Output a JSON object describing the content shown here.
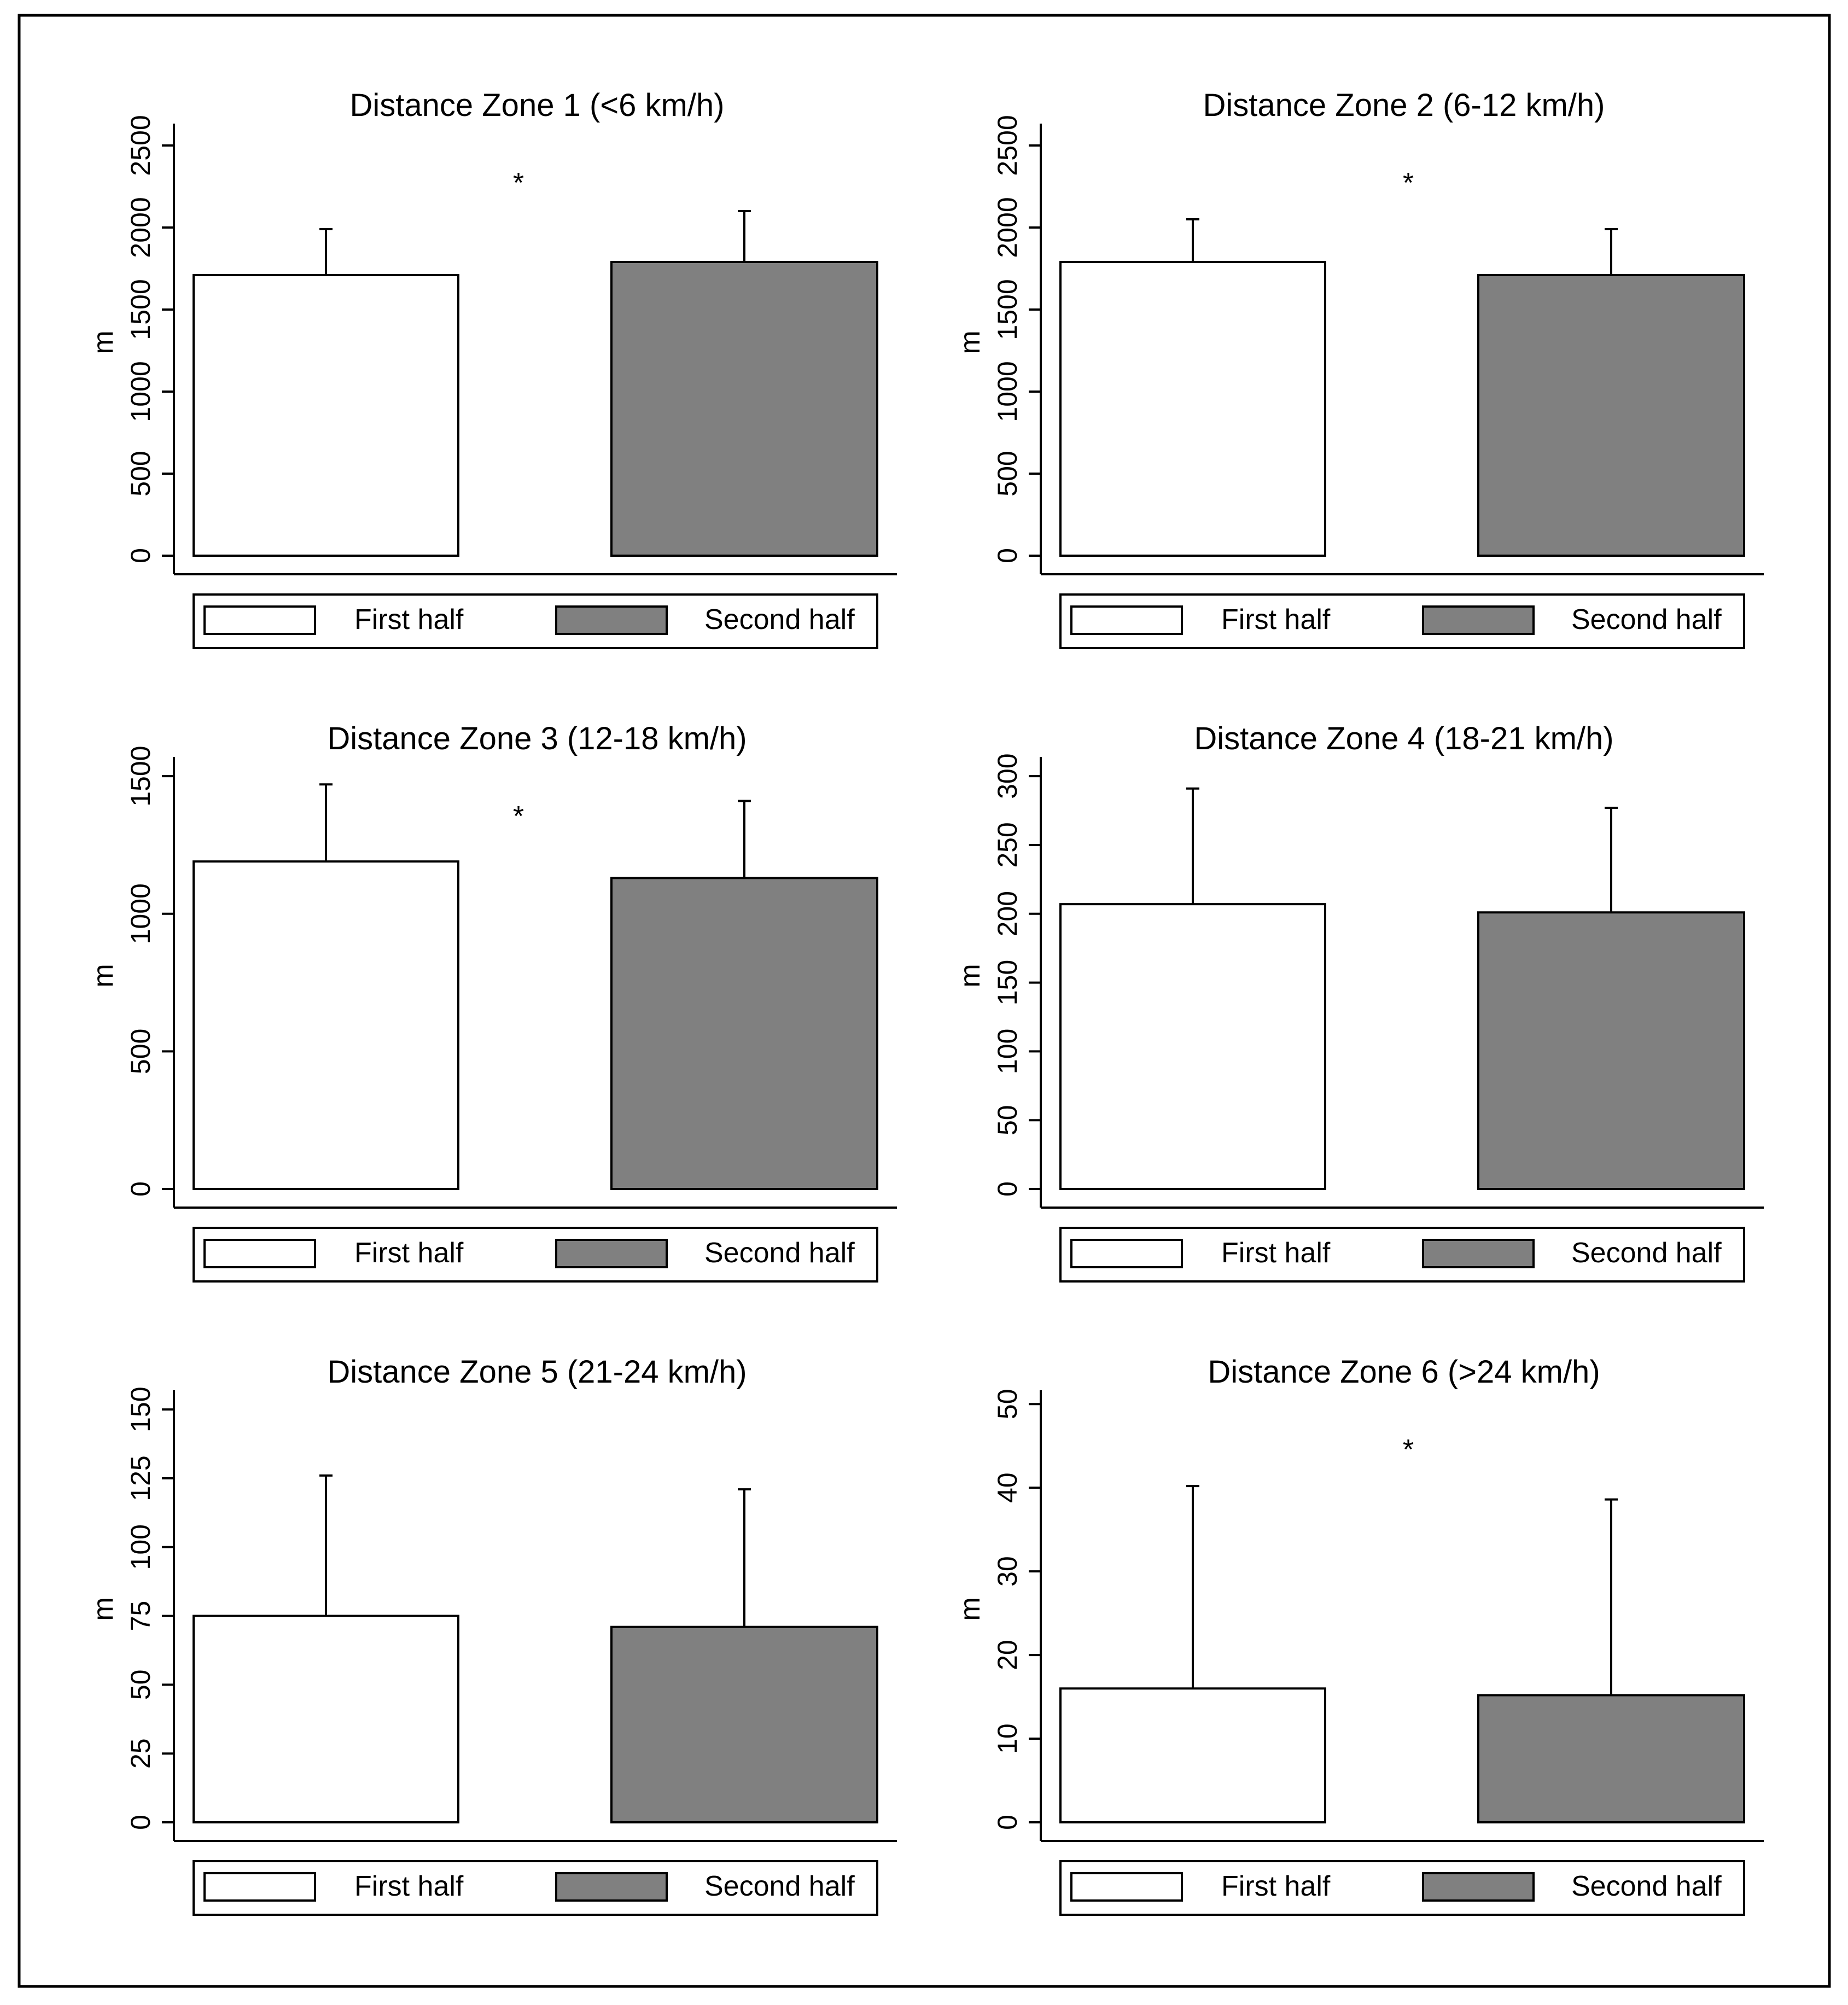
{
  "figure": {
    "legend": {
      "first_label": "First half",
      "second_label": "Second half"
    },
    "colors": {
      "first": "#ffffff",
      "second": "#808080",
      "stroke": "#000000"
    }
  },
  "chart_data": [
    {
      "type": "bar",
      "title": "Distance Zone 1 (<6 km/h)",
      "ylabel": "m",
      "ylim": [
        0,
        2600
      ],
      "yticks": [
        0,
        500,
        1000,
        1500,
        2000,
        2500
      ],
      "series": [
        {
          "name": "First half",
          "value": 1710,
          "error": 280
        },
        {
          "name": "Second half",
          "value": 1790,
          "error": 310
        }
      ],
      "annotation": "*"
    },
    {
      "type": "bar",
      "title": "Distance Zone 2 (6-12 km/h)",
      "ylabel": "m",
      "ylim": [
        0,
        2600
      ],
      "yticks": [
        0,
        500,
        1000,
        1500,
        2000,
        2500
      ],
      "series": [
        {
          "name": "First half",
          "value": 1790,
          "error": 260
        },
        {
          "name": "Second half",
          "value": 1710,
          "error": 280
        }
      ],
      "annotation": "*"
    },
    {
      "type": "bar",
      "title": "Distance Zone 3 (12-18 km/h)",
      "ylabel": "m",
      "ylim": [
        0,
        1550
      ],
      "yticks": [
        0,
        500,
        1000,
        1500
      ],
      "series": [
        {
          "name": "First half",
          "value": 1190,
          "error": 280
        },
        {
          "name": "Second half",
          "value": 1130,
          "error": 280
        }
      ],
      "annotation": "*"
    },
    {
      "type": "bar",
      "title": "Distance Zone 4 (18-21 km/h)",
      "ylabel": "m",
      "ylim": [
        0,
        310
      ],
      "yticks": [
        0,
        50,
        100,
        150,
        200,
        250,
        300
      ],
      "series": [
        {
          "name": "First half",
          "value": 207,
          "error": 84
        },
        {
          "name": "Second half",
          "value": 201,
          "error": 76
        }
      ],
      "annotation": ""
    },
    {
      "type": "bar",
      "title": "Distance Zone 5 (21-24 km/h)",
      "ylabel": "m",
      "ylim": [
        0,
        155
      ],
      "yticks": [
        0,
        25,
        50,
        75,
        100,
        125,
        150
      ],
      "series": [
        {
          "name": "First half",
          "value": 75,
          "error": 51
        },
        {
          "name": "Second half",
          "value": 71,
          "error": 50
        }
      ],
      "annotation": ""
    },
    {
      "type": "bar",
      "title": "Distance Zone 6 (>24 km/h)",
      "ylabel": "m",
      "ylim": [
        0,
        51
      ],
      "yticks": [
        0,
        10,
        20,
        30,
        40,
        50
      ],
      "series": [
        {
          "name": "First half",
          "value": 16,
          "error": 24.2
        },
        {
          "name": "Second half",
          "value": 15.2,
          "error": 23.4
        }
      ],
      "annotation": "*"
    }
  ]
}
